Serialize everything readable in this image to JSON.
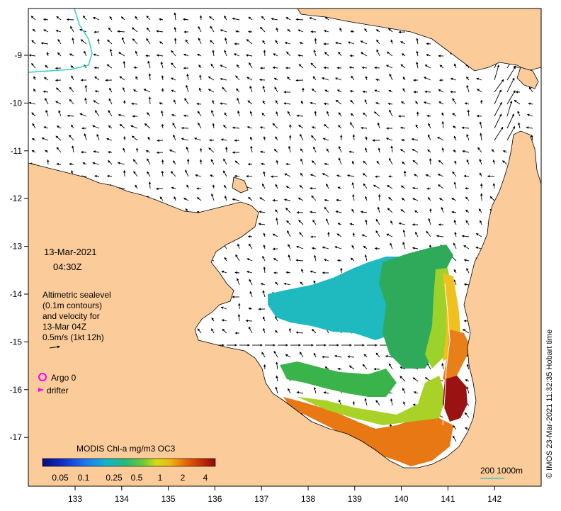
{
  "map": {
    "date_line": "13-Mar-2021",
    "time_line": "04:30Z",
    "description_lines": [
      "Altimetric sealevel",
      "(0.1m contours)",
      "and velocity for",
      "13-Mar 04Z",
      "0.5m/s (1kt 12h)"
    ],
    "argo_label": "Argo 0",
    "drifter_label": "drifter",
    "colorbar_title": "MODIS Chl-a mg/m3 OC3",
    "colorbar_ticks": [
      "0.05",
      "0.1",
      "0.25",
      "0.5",
      "1",
      "2",
      "4"
    ],
    "depth_label": "200  1000m",
    "credit": "© IMOS 23-Mar-2021 11:32:35 Hobart time",
    "lon_ticks": [
      "133",
      "134",
      "135",
      "136",
      "137",
      "138",
      "139",
      "140",
      "141",
      "142"
    ],
    "lat_ticks": [
      "-9",
      "-10",
      "-11",
      "-12",
      "-13",
      "-14",
      "-15",
      "-16",
      "-17"
    ],
    "colors": {
      "land": "#fbcb9a",
      "contour": "#33cccc",
      "argo": "#ff00ff",
      "drifter": "#ff00ff"
    }
  }
}
